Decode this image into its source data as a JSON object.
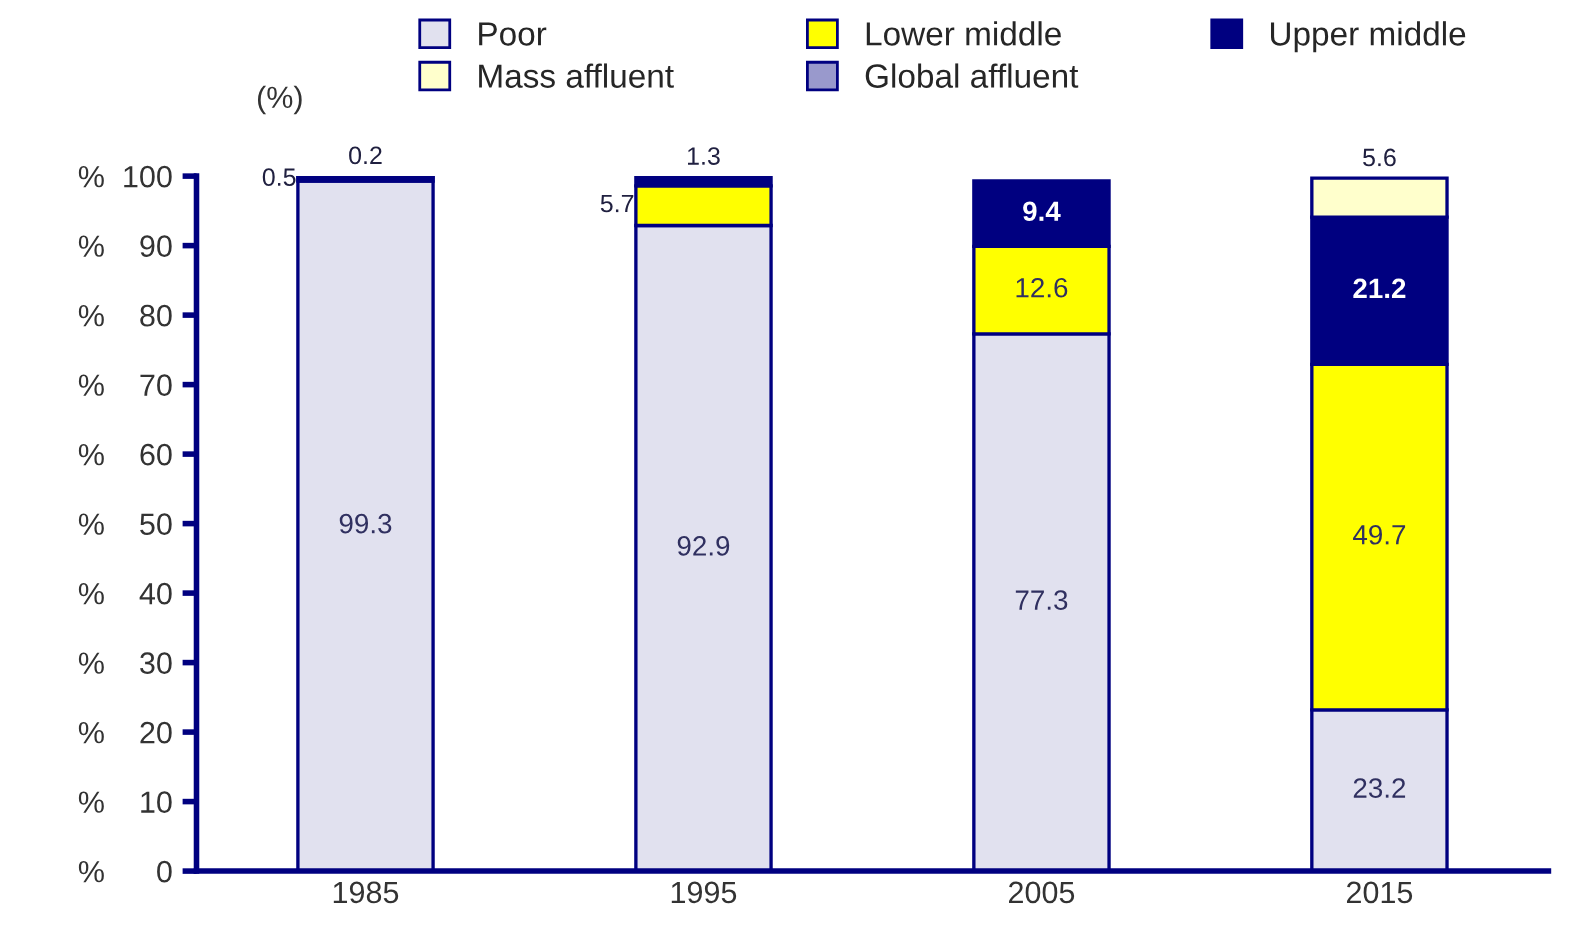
{
  "chart_data": {
    "type": "bar",
    "stacked": true,
    "categories": [
      "1985",
      "1995",
      "2005",
      "2015"
    ],
    "series": [
      {
        "name": "Poor",
        "color": "#e1e1ef",
        "values": [
          99.3,
          92.9,
          77.3,
          23.2
        ],
        "value_labels": [
          "99.3",
          "92.9",
          "77.3",
          "23.2"
        ]
      },
      {
        "name": "Lower middle",
        "color": "#ffff00",
        "values": [
          0.5,
          5.7,
          12.6,
          49.7
        ],
        "value_labels": [
          "0.5",
          "5.7",
          "12.6",
          "49.7"
        ]
      },
      {
        "name": "Upper middle",
        "color": "#000080",
        "values": [
          0.2,
          1.3,
          9.4,
          21.2
        ],
        "value_labels": [
          "0.2",
          "1.3",
          "9.4",
          "21.2"
        ]
      },
      {
        "name": "Mass affluent",
        "color": "#ffffcc",
        "values": [
          null,
          null,
          null,
          5.6
        ],
        "value_labels": [
          null,
          null,
          null,
          "5.6"
        ]
      },
      {
        "name": "Global affluent",
        "color": "#9999cc",
        "values": [
          null,
          null,
          null,
          null
        ]
      }
    ],
    "ylim": [
      0,
      100
    ],
    "yticks": [
      {
        "value": 0,
        "label": "%      0"
      },
      {
        "value": 10,
        "label": "%    10"
      },
      {
        "value": 20,
        "label": "%    20"
      },
      {
        "value": 30,
        "label": "%    30"
      },
      {
        "value": 40,
        "label": "%    40"
      },
      {
        "value": 50,
        "label": "%    50"
      },
      {
        "value": 60,
        "label": "%    60"
      },
      {
        "value": 70,
        "label": "%    70"
      },
      {
        "value": 80,
        "label": "%    80"
      },
      {
        "value": 90,
        "label": "%    90"
      },
      {
        "value": 100,
        "label": "%  100"
      }
    ],
    "annotations": [
      "(%)"
    ],
    "legend": "top",
    "grid": false
  }
}
